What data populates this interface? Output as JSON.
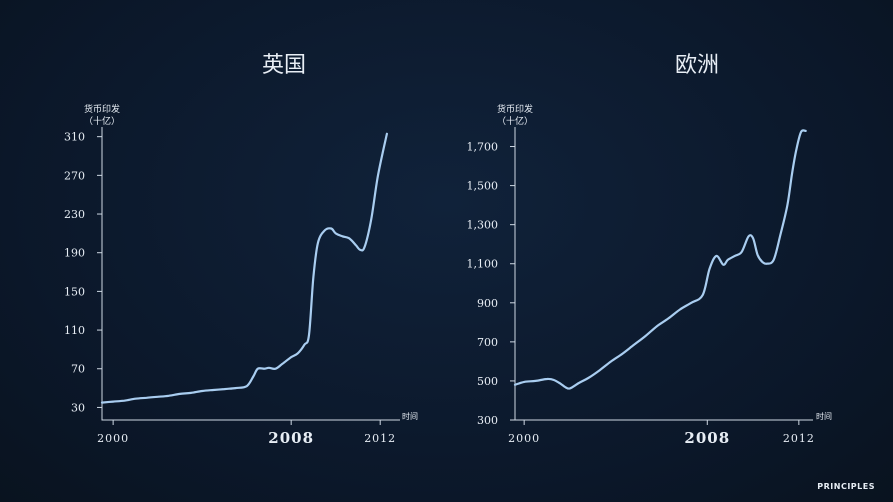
{
  "brand": "PRINCIPLES",
  "chart_data": [
    {
      "type": "line",
      "title": "英国",
      "ylabel_line1": "货币印发",
      "ylabel_line2": "（十亿）",
      "xlabel": "时间",
      "yticks": [
        30,
        70,
        110,
        150,
        190,
        230,
        270,
        310
      ],
      "ytick_labels": [
        "30",
        "70",
        "110",
        "150",
        "190",
        "230",
        "270",
        "310"
      ],
      "ylim": [
        17,
        320
      ],
      "xlim": [
        1999.5,
        2012.8
      ],
      "xticks": [
        {
          "value": 2000,
          "label": "2000",
          "bold": false
        },
        {
          "value": 2008,
          "label": "2008",
          "bold": true
        },
        {
          "value": 2012,
          "label": "2012",
          "bold": false
        }
      ],
      "grid": false,
      "series": [
        {
          "x": [
            1999.5,
            2000.0,
            2000.5,
            2001.0,
            2001.5,
            2002.0,
            2002.5,
            2003.0,
            2003.5,
            2004.0,
            2004.5,
            2005.0,
            2005.5,
            2006.0,
            2006.3,
            2006.5,
            2006.8,
            2007.0,
            2007.3,
            2007.6,
            2008.0,
            2008.3,
            2008.6,
            2008.8,
            2009.0,
            2009.2,
            2009.5,
            2009.8,
            2010.0,
            2010.3,
            2010.6,
            2010.9,
            2011.1,
            2011.3,
            2011.6,
            2011.9,
            2012.3
          ],
          "values": [
            35,
            36,
            37,
            39,
            40,
            41,
            42,
            44,
            45,
            47,
            48,
            49,
            50,
            52,
            62,
            70,
            70,
            71,
            70,
            75,
            82,
            86,
            95,
            105,
            165,
            200,
            213,
            215,
            210,
            207,
            205,
            198,
            193,
            196,
            225,
            270,
            313
          ]
        }
      ]
    },
    {
      "type": "line",
      "title": "欧洲",
      "ylabel_line1": "货币印发",
      "ylabel_line2": "（十亿）",
      "xlabel": "时间",
      "yticks": [
        300,
        500,
        700,
        900,
        1100,
        1300,
        1500,
        1700
      ],
      "ytick_labels": [
        "300",
        "500",
        "700",
        "900",
        "1,100",
        "1,300",
        "1,500",
        "1,700"
      ],
      "ylim": [
        300,
        1800
      ],
      "xlim": [
        1999.6,
        2012.4
      ],
      "xticks": [
        {
          "value": 2000,
          "label": "2000",
          "bold": false
        },
        {
          "value": 2008,
          "label": "2008",
          "bold": true
        },
        {
          "value": 2012,
          "label": "2012",
          "bold": false
        }
      ],
      "grid": false,
      "series": [
        {
          "x": [
            1999.6,
            2000.0,
            2000.5,
            2001.0,
            2001.3,
            2001.6,
            2001.8,
            2002.0,
            2002.4,
            2002.8,
            2003.3,
            2003.8,
            2004.3,
            2004.8,
            2005.3,
            2005.8,
            2006.3,
            2006.8,
            2007.3,
            2007.8,
            2008.1,
            2008.4,
            2008.7,
            2008.9,
            2009.2,
            2009.5,
            2009.8,
            2010.0,
            2010.2,
            2010.4,
            2010.6,
            2010.9,
            2011.2,
            2011.5,
            2011.7,
            2011.9,
            2012.1,
            2012.3
          ],
          "values": [
            480,
            495,
            500,
            510,
            505,
            485,
            468,
            462,
            490,
            515,
            555,
            600,
            640,
            685,
            730,
            780,
            820,
            865,
            900,
            940,
            1075,
            1140,
            1095,
            1120,
            1140,
            1160,
            1240,
            1230,
            1145,
            1110,
            1100,
            1120,
            1250,
            1400,
            1560,
            1690,
            1775,
            1780
          ]
        }
      ]
    }
  ]
}
